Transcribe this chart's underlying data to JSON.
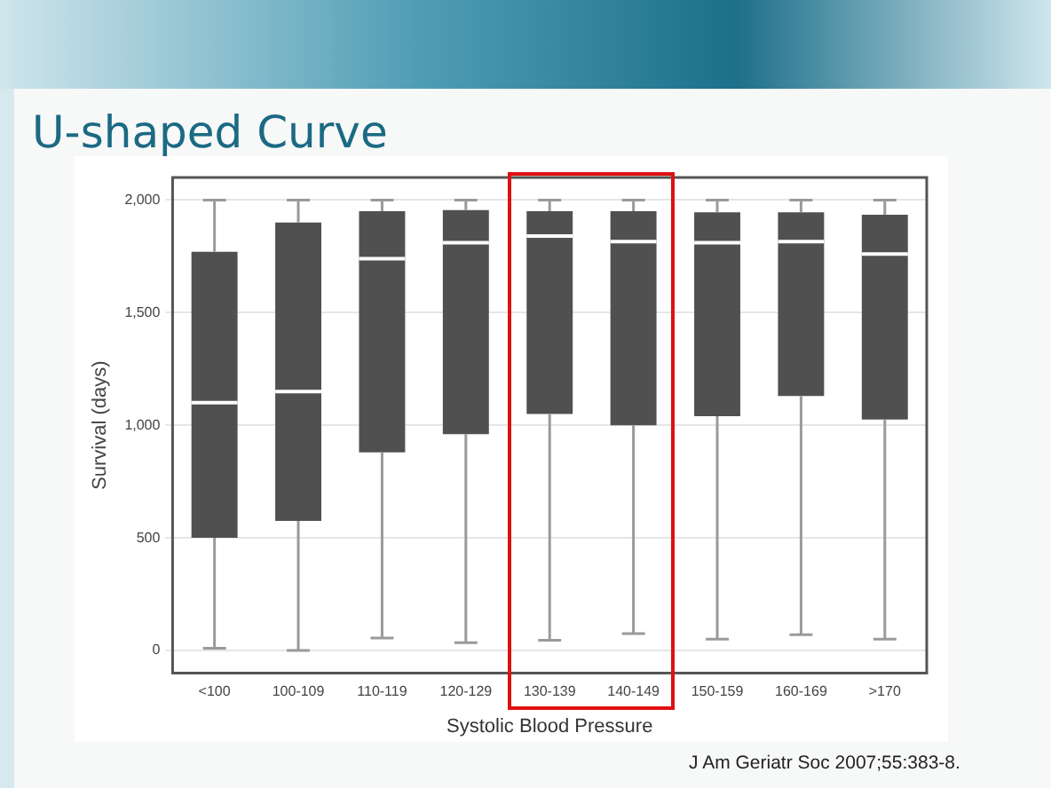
{
  "chart_data": {
    "type": "box",
    "title": "U-shaped Curve",
    "xlabel": "Systolic Blood Pressure",
    "ylabel": "Survival (days)",
    "categories": [
      "<100",
      "100-109",
      "110-119",
      "120-129",
      "130-139",
      "140-149",
      "150-159",
      "160-169",
      ">170"
    ],
    "color": "#505050",
    "boxes": [
      {
        "low": 10,
        "q1": 500,
        "median": 1100,
        "q3": 1770,
        "high": 2000
      },
      {
        "low": 0,
        "q1": 575,
        "median": 1150,
        "q3": 1900,
        "high": 2000
      },
      {
        "low": 55,
        "q1": 880,
        "median": 1740,
        "q3": 1950,
        "high": 2000
      },
      {
        "low": 35,
        "q1": 960,
        "median": 1810,
        "q3": 1955,
        "high": 2000
      },
      {
        "low": 45,
        "q1": 1050,
        "median": 1840,
        "q3": 1950,
        "high": 2000
      },
      {
        "low": 75,
        "q1": 1000,
        "median": 1815,
        "q3": 1950,
        "high": 2000
      },
      {
        "low": 50,
        "q1": 1040,
        "median": 1810,
        "q3": 1945,
        "high": 2000
      },
      {
        "low": 70,
        "q1": 1130,
        "median": 1815,
        "q3": 1945,
        "high": 2000
      },
      {
        "low": 50,
        "q1": 1025,
        "median": 1760,
        "q3": 1935,
        "high": 2000
      }
    ],
    "ylim": [
      -100,
      2100
    ],
    "yticks": [
      {
        "value": 0,
        "label": "0"
      },
      {
        "value": 500,
        "label": "500"
      },
      {
        "value": 1000,
        "label": "1,000"
      },
      {
        "value": 1500,
        "label": "1,500"
      },
      {
        "value": 2000,
        "label": "2,000"
      }
    ],
    "grid": "y",
    "legend": false,
    "annotations": [
      "J Am Geriatr Soc 2007;55:383-8."
    ]
  }
}
